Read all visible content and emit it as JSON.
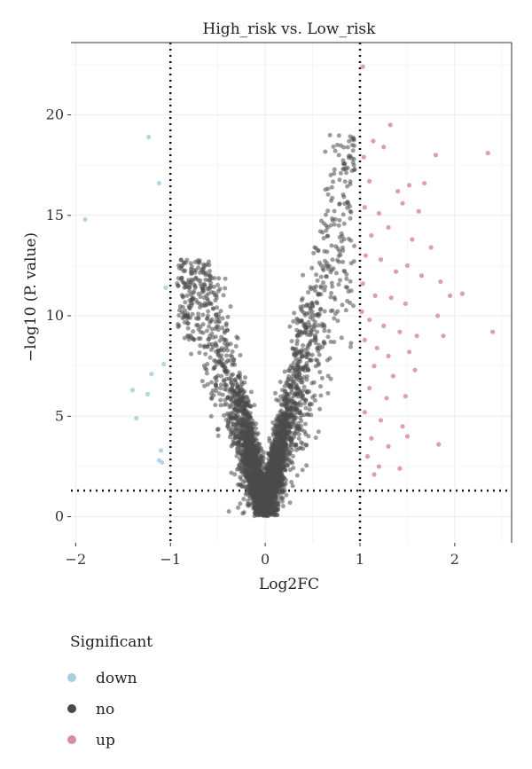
{
  "chart_data": {
    "type": "scatter",
    "title": "High_risk vs. Low_risk",
    "xlabel": "Log2FC",
    "ylabel": "−log10 (P. value)",
    "xlim": [
      -2.05,
      2.6
    ],
    "ylim": [
      -1.3,
      23.6
    ],
    "xticks": [
      -2,
      -1,
      0,
      1,
      2
    ],
    "xtick_labels": [
      "−2",
      "−1",
      "0",
      "1",
      "2"
    ],
    "yticks": [
      0,
      5,
      10,
      15,
      20
    ],
    "ytick_labels": [
      "0",
      "5",
      "10",
      "15",
      "20"
    ],
    "grid": true,
    "threshold_lines": {
      "log2fc": [
        -1,
        1
      ],
      "neg_log10_p": 1.3
    },
    "legend": {
      "title": "Significant",
      "position": "bottom-left",
      "entries": [
        {
          "label": "down",
          "color": "#a6cfe0"
        },
        {
          "label": "no",
          "color": "#4a4a4a"
        },
        {
          "label": "up",
          "color": "#d98ca6"
        }
      ]
    },
    "series": [
      {
        "name": "down",
        "color": "#a6cfe0",
        "points": [
          [
            -1.9,
            14.8
          ],
          [
            -1.23,
            18.9
          ],
          [
            -1.12,
            16.6
          ],
          [
            -1.05,
            11.4
          ],
          [
            -1.07,
            7.6
          ],
          [
            -1.2,
            7.1
          ],
          [
            -1.4,
            6.3
          ],
          [
            -1.24,
            6.1
          ],
          [
            -1.36,
            4.9
          ],
          [
            -1.1,
            3.3
          ],
          [
            -1.12,
            2.8
          ],
          [
            -1.09,
            2.7
          ]
        ]
      },
      {
        "name": "up",
        "color": "#d98ca6",
        "points": [
          [
            1.03,
            22.4
          ],
          [
            1.32,
            19.5
          ],
          [
            1.14,
            18.7
          ],
          [
            1.25,
            18.4
          ],
          [
            1.04,
            17.9
          ],
          [
            1.8,
            18.0
          ],
          [
            2.35,
            18.1
          ],
          [
            1.1,
            16.7
          ],
          [
            1.4,
            16.2
          ],
          [
            1.52,
            16.5
          ],
          [
            1.68,
            16.6
          ],
          [
            1.05,
            15.4
          ],
          [
            1.2,
            15.1
          ],
          [
            1.45,
            15.6
          ],
          [
            1.62,
            15.2
          ],
          [
            1.12,
            14.0
          ],
          [
            1.3,
            14.4
          ],
          [
            1.55,
            13.8
          ],
          [
            1.75,
            13.4
          ],
          [
            1.06,
            13.0
          ],
          [
            1.22,
            12.8
          ],
          [
            1.38,
            12.2
          ],
          [
            1.5,
            12.5
          ],
          [
            1.65,
            12.0
          ],
          [
            1.85,
            11.7
          ],
          [
            1.03,
            11.6
          ],
          [
            1.16,
            11.0
          ],
          [
            1.33,
            10.9
          ],
          [
            1.48,
            10.6
          ],
          [
            1.95,
            11.0
          ],
          [
            2.08,
            11.1
          ],
          [
            1.02,
            10.2
          ],
          [
            1.1,
            9.8
          ],
          [
            1.25,
            9.5
          ],
          [
            1.42,
            9.2
          ],
          [
            1.6,
            9.0
          ],
          [
            1.82,
            10.0
          ],
          [
            1.88,
            9.0
          ],
          [
            2.4,
            9.2
          ],
          [
            1.05,
            8.8
          ],
          [
            1.18,
            8.4
          ],
          [
            1.3,
            8.0
          ],
          [
            1.52,
            8.2
          ],
          [
            1.15,
            7.5
          ],
          [
            1.35,
            7.0
          ],
          [
            1.58,
            7.3
          ],
          [
            1.1,
            6.4
          ],
          [
            1.28,
            5.9
          ],
          [
            1.48,
            6.0
          ],
          [
            1.05,
            5.2
          ],
          [
            1.22,
            4.8
          ],
          [
            1.45,
            4.5
          ],
          [
            1.12,
            3.9
          ],
          [
            1.3,
            3.5
          ],
          [
            1.5,
            4.0
          ],
          [
            1.83,
            3.6
          ],
          [
            1.08,
            3.0
          ],
          [
            1.2,
            2.5
          ],
          [
            1.42,
            2.4
          ],
          [
            1.15,
            2.1
          ]
        ]
      },
      {
        "name": "no",
        "color": "#4a4a4a",
        "distribution": "~4000 non-significant genes forming a V (volcano) shape centred at Log2FC = 0, confined to −1 < Log2FC < 1; upper right arm reaches ~19, left arm ~12.7",
        "count": 4000
      }
    ]
  }
}
